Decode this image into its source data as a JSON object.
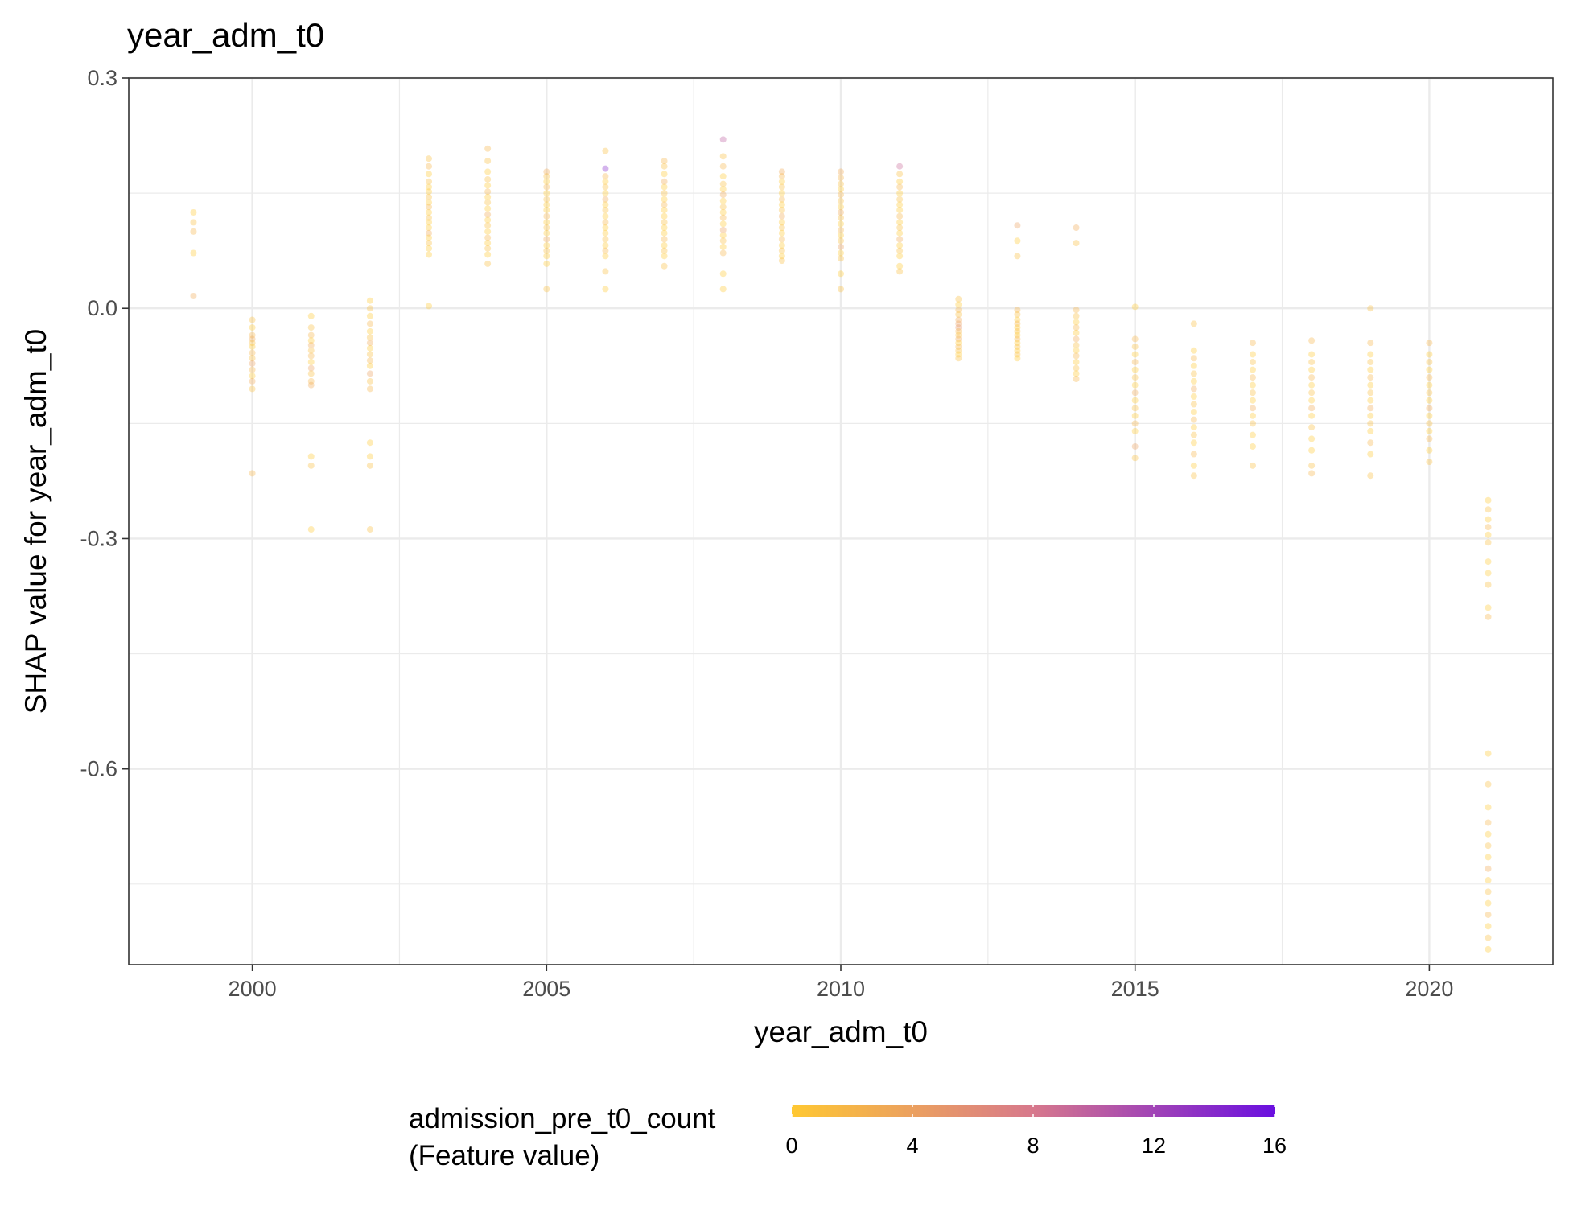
{
  "chart_data": {
    "type": "scatter",
    "title": "year_adm_t0",
    "xlabel": "year_adm_t0",
    "ylabel": "SHAP value for year_adm_t0",
    "xlim": [
      1997.9,
      2022.1
    ],
    "ylim": [
      -0.855,
      0.3
    ],
    "x_ticks": [
      2000,
      2005,
      2010,
      2015,
      2020
    ],
    "x_tick_labels": [
      "2000",
      "2005",
      "2010",
      "2015",
      "2020"
    ],
    "y_ticks": [
      0.3,
      0.0,
      -0.3,
      -0.6
    ],
    "y_tick_labels": [
      "0.3",
      "0.0",
      "-0.3",
      "-0.6"
    ],
    "grid": true,
    "point_opacity": 0.35,
    "color_scale": {
      "title_line1": "admission_pre_t0_count",
      "title_line2": "(Feature value)",
      "low_color": "#FFC832",
      "mid_color": "#D7788C",
      "high_color": "#6A0FE0",
      "min": 0,
      "max": 16,
      "ticks": [
        0,
        4,
        8,
        12,
        16
      ],
      "tick_labels": [
        "0",
        "4",
        "8",
        "12",
        "16"
      ],
      "placement": "bottom"
    },
    "groups": [
      {
        "x": 1999,
        "y": [
          0.125,
          0.112,
          0.1,
          0.072,
          0.016
        ],
        "c": [
          0,
          1,
          2,
          0,
          3
        ]
      },
      {
        "x": 2000,
        "y": [
          -0.015,
          -0.025,
          -0.035,
          -0.04,
          -0.045,
          -0.05,
          -0.058,
          -0.065,
          -0.072,
          -0.08,
          -0.088,
          -0.095,
          -0.105,
          -0.215
        ],
        "c": [
          1,
          0,
          2,
          3,
          1,
          0,
          2,
          1,
          4,
          2,
          0,
          3,
          1,
          2
        ]
      },
      {
        "x": 2001,
        "y": [
          -0.01,
          -0.025,
          -0.035,
          -0.042,
          -0.048,
          -0.055,
          -0.062,
          -0.07,
          -0.078,
          -0.085,
          -0.095,
          -0.1,
          -0.193,
          -0.205,
          -0.288
        ],
        "c": [
          0,
          1,
          2,
          0,
          3,
          1,
          2,
          0,
          4,
          1,
          2,
          3,
          0,
          1,
          0
        ]
      },
      {
        "x": 2002,
        "y": [
          0.01,
          0.0,
          -0.01,
          -0.02,
          -0.03,
          -0.038,
          -0.045,
          -0.052,
          -0.06,
          -0.068,
          -0.075,
          -0.085,
          -0.095,
          -0.105,
          -0.175,
          -0.193,
          -0.205,
          -0.288
        ],
        "c": [
          0,
          1,
          0,
          2,
          0,
          1,
          3,
          0,
          1,
          2,
          0,
          4,
          1,
          2,
          0,
          0,
          1,
          1
        ]
      },
      {
        "x": 2003,
        "y": [
          0.195,
          0.185,
          0.175,
          0.165,
          0.158,
          0.152,
          0.145,
          0.138,
          0.132,
          0.125,
          0.118,
          0.112,
          0.105,
          0.098,
          0.092,
          0.085,
          0.078,
          0.07,
          0.003
        ],
        "c": [
          1,
          2,
          0,
          1,
          0,
          0,
          1,
          0,
          2,
          0,
          1,
          0,
          0,
          3,
          0,
          1,
          0,
          0,
          0
        ]
      },
      {
        "x": 2004,
        "y": [
          0.208,
          0.192,
          0.178,
          0.168,
          0.16,
          0.152,
          0.145,
          0.138,
          0.13,
          0.122,
          0.115,
          0.108,
          0.1,
          0.092,
          0.085,
          0.078,
          0.07,
          0.058
        ],
        "c": [
          2,
          1,
          0,
          1,
          0,
          2,
          0,
          1,
          0,
          3,
          0,
          1,
          0,
          2,
          0,
          1,
          0,
          1
        ]
      },
      {
        "x": 2005,
        "y": [
          0.178,
          0.172,
          0.165,
          0.158,
          0.15,
          0.142,
          0.135,
          0.128,
          0.12,
          0.112,
          0.105,
          0.098,
          0.09,
          0.082,
          0.075,
          0.068,
          0.058,
          0.025
        ],
        "c": [
          3,
          1,
          0,
          2,
          0,
          1,
          0,
          0,
          2,
          0,
          1,
          0,
          3,
          0,
          1,
          0,
          0,
          1
        ]
      },
      {
        "x": 2006,
        "y": [
          0.205,
          0.182,
          0.172,
          0.165,
          0.158,
          0.15,
          0.142,
          0.135,
          0.128,
          0.12,
          0.112,
          0.105,
          0.098,
          0.09,
          0.082,
          0.075,
          0.068,
          0.048,
          0.025
        ],
        "c": [
          1,
          14,
          2,
          0,
          1,
          0,
          3,
          0,
          1,
          0,
          2,
          0,
          0,
          1,
          0,
          2,
          0,
          1,
          0
        ]
      },
      {
        "x": 2007,
        "y": [
          0.192,
          0.185,
          0.175,
          0.165,
          0.158,
          0.15,
          0.142,
          0.135,
          0.128,
          0.12,
          0.112,
          0.105,
          0.098,
          0.09,
          0.082,
          0.075,
          0.068,
          0.055
        ],
        "c": [
          2,
          1,
          0,
          3,
          0,
          1,
          0,
          2,
          0,
          0,
          1,
          0,
          0,
          2,
          0,
          1,
          0,
          1
        ]
      },
      {
        "x": 2008,
        "y": [
          0.22,
          0.198,
          0.185,
          0.172,
          0.162,
          0.155,
          0.148,
          0.14,
          0.132,
          0.125,
          0.118,
          0.11,
          0.102,
          0.095,
          0.088,
          0.08,
          0.072,
          0.045,
          0.025
        ],
        "c": [
          10,
          1,
          2,
          0,
          1,
          0,
          3,
          0,
          1,
          0,
          2,
          0,
          4,
          0,
          1,
          0,
          2,
          0,
          0
        ]
      },
      {
        "x": 2009,
        "y": [
          0.178,
          0.172,
          0.165,
          0.158,
          0.15,
          0.142,
          0.135,
          0.128,
          0.12,
          0.112,
          0.105,
          0.098,
          0.09,
          0.082,
          0.075,
          0.068,
          0.062
        ],
        "c": [
          3,
          2,
          0,
          1,
          0,
          2,
          0,
          1,
          3,
          0,
          1,
          0,
          2,
          0,
          1,
          0,
          1
        ]
      },
      {
        "x": 2010,
        "y": [
          0.178,
          0.17,
          0.162,
          0.155,
          0.148,
          0.14,
          0.132,
          0.125,
          0.118,
          0.11,
          0.102,
          0.095,
          0.088,
          0.08,
          0.072,
          0.065,
          0.045,
          0.025
        ],
        "c": [
          3,
          2,
          1,
          0,
          2,
          1,
          0,
          3,
          1,
          0,
          2,
          0,
          1,
          4,
          0,
          1,
          0,
          1
        ]
      },
      {
        "x": 2011,
        "y": [
          0.185,
          0.175,
          0.165,
          0.158,
          0.15,
          0.142,
          0.135,
          0.128,
          0.12,
          0.112,
          0.105,
          0.098,
          0.09,
          0.082,
          0.075,
          0.068,
          0.055,
          0.048
        ],
        "c": [
          9,
          1,
          0,
          2,
          0,
          1,
          0,
          0,
          2,
          0,
          1,
          0,
          3,
          0,
          1,
          0,
          0,
          1
        ]
      },
      {
        "x": 2012,
        "y": [
          0.012,
          0.005,
          -0.002,
          -0.008,
          -0.015,
          -0.02,
          -0.025,
          -0.03,
          -0.035,
          -0.04,
          -0.045,
          -0.05,
          -0.055,
          -0.06,
          -0.065
        ],
        "c": [
          1,
          0,
          2,
          1,
          3,
          4,
          5,
          2,
          1,
          3,
          0,
          2,
          1,
          0,
          1
        ]
      },
      {
        "x": 2013,
        "y": [
          0.108,
          0.088,
          0.068,
          -0.002,
          -0.008,
          -0.015,
          -0.02,
          -0.025,
          -0.03,
          -0.035,
          -0.04,
          -0.045,
          -0.05,
          -0.055,
          -0.06,
          -0.065
        ],
        "c": [
          4,
          0,
          1,
          2,
          1,
          0,
          2,
          0,
          1,
          0,
          2,
          0,
          1,
          0,
          1,
          0
        ]
      },
      {
        "x": 2014,
        "y": [
          0.105,
          0.085,
          -0.002,
          -0.01,
          -0.018,
          -0.025,
          -0.032,
          -0.04,
          -0.048,
          -0.055,
          -0.062,
          -0.07,
          -0.078,
          -0.085,
          -0.092
        ],
        "c": [
          3,
          1,
          2,
          1,
          0,
          2,
          0,
          3,
          1,
          0,
          2,
          0,
          1,
          0,
          2
        ]
      },
      {
        "x": 2015,
        "y": [
          0.002,
          -0.04,
          -0.05,
          -0.06,
          -0.07,
          -0.08,
          -0.09,
          -0.1,
          -0.11,
          -0.12,
          -0.13,
          -0.14,
          -0.15,
          -0.16,
          -0.18,
          -0.195
        ],
        "c": [
          0,
          2,
          1,
          0,
          2,
          0,
          1,
          0,
          3,
          0,
          1,
          0,
          2,
          0,
          4,
          1
        ]
      },
      {
        "x": 2016,
        "y": [
          -0.02,
          -0.055,
          -0.065,
          -0.075,
          -0.085,
          -0.095,
          -0.105,
          -0.115,
          -0.125,
          -0.135,
          -0.145,
          -0.155,
          -0.165,
          -0.175,
          -0.19,
          -0.205,
          -0.218
        ],
        "c": [
          1,
          0,
          2,
          0,
          1,
          0,
          3,
          0,
          1,
          0,
          2,
          0,
          1,
          0,
          2,
          0,
          1
        ]
      },
      {
        "x": 2017,
        "y": [
          -0.045,
          -0.06,
          -0.07,
          -0.08,
          -0.09,
          -0.1,
          -0.11,
          -0.12,
          -0.13,
          -0.14,
          -0.15,
          -0.165,
          -0.18,
          -0.205
        ],
        "c": [
          2,
          0,
          1,
          0,
          2,
          0,
          1,
          0,
          3,
          0,
          1,
          0,
          0,
          1
        ]
      },
      {
        "x": 2018,
        "y": [
          -0.042,
          -0.06,
          -0.07,
          -0.08,
          -0.09,
          -0.1,
          -0.11,
          -0.12,
          -0.13,
          -0.14,
          -0.155,
          -0.17,
          -0.185,
          -0.205,
          -0.215
        ],
        "c": [
          2,
          0,
          1,
          0,
          2,
          0,
          1,
          0,
          3,
          0,
          1,
          0,
          0,
          1,
          2
        ]
      },
      {
        "x": 2019,
        "y": [
          0.0,
          -0.045,
          -0.06,
          -0.07,
          -0.08,
          -0.09,
          -0.1,
          -0.11,
          -0.12,
          -0.13,
          -0.14,
          -0.15,
          -0.16,
          -0.175,
          -0.19,
          -0.218
        ],
        "c": [
          1,
          2,
          0,
          1,
          0,
          2,
          0,
          1,
          0,
          3,
          0,
          1,
          0,
          2,
          0,
          1
        ]
      },
      {
        "x": 2020,
        "y": [
          -0.045,
          -0.06,
          -0.07,
          -0.08,
          -0.09,
          -0.1,
          -0.11,
          -0.12,
          -0.13,
          -0.14,
          -0.15,
          -0.16,
          -0.17,
          -0.185,
          -0.2
        ],
        "c": [
          2,
          0,
          1,
          0,
          2,
          0,
          1,
          0,
          3,
          0,
          1,
          0,
          2,
          0,
          1
        ]
      },
      {
        "x": 2021,
        "y": [
          -0.25,
          -0.262,
          -0.275,
          -0.285,
          -0.295,
          -0.305,
          -0.33,
          -0.345,
          -0.36,
          -0.39,
          -0.402,
          -0.58,
          -0.62,
          -0.65,
          -0.67,
          -0.685,
          -0.7,
          -0.715,
          -0.73,
          -0.745,
          -0.76,
          -0.775,
          -0.79,
          -0.805,
          -0.82,
          -0.835
        ],
        "c": [
          0,
          1,
          0,
          2,
          0,
          1,
          0,
          0,
          1,
          0,
          2,
          0,
          1,
          0,
          2,
          0,
          1,
          0,
          3,
          0,
          1,
          0,
          2,
          0,
          1,
          0
        ]
      }
    ]
  }
}
